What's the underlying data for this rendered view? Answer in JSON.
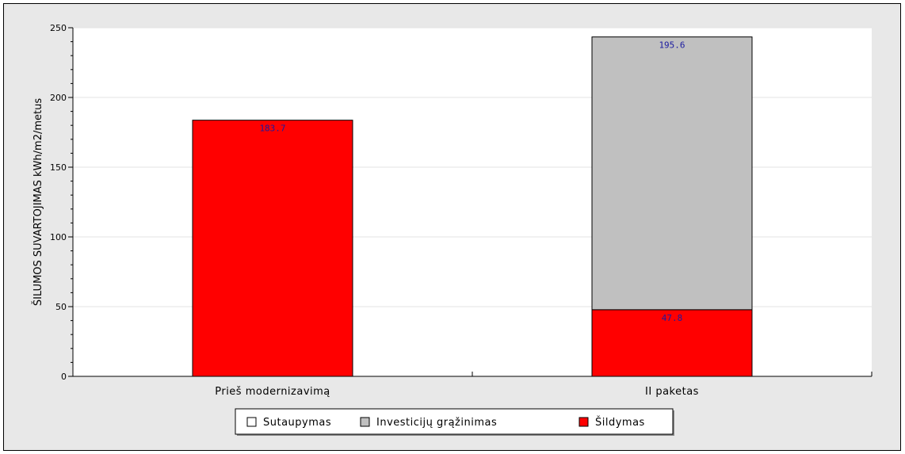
{
  "chart_data": {
    "type": "bar",
    "stacked": true,
    "categories": [
      "Prieš modernizavimą",
      "II paketas"
    ],
    "series": [
      {
        "name": "Sutaupymas",
        "color": "#ffffff",
        "values": [
          0,
          0
        ]
      },
      {
        "name": "Investicijų grąžinimas",
        "color": "#c0c0c0",
        "values": [
          0,
          195.6
        ]
      },
      {
        "name": "Šildymas",
        "color": "#ff0000",
        "values": [
          183.7,
          47.8
        ]
      }
    ],
    "data_labels": [
      {
        "category": 0,
        "series": "Šildymas",
        "text": "183.7"
      },
      {
        "category": 1,
        "series": "Investicijų grąžinimas",
        "text": "195.6"
      },
      {
        "category": 1,
        "series": "Šildymas",
        "text": "47.8"
      }
    ],
    "title": "",
    "xlabel": "",
    "ylabel": "ŠILUMOS SUVARTOJIMAS kWh/m2/metus",
    "ylim": [
      0,
      250
    ],
    "yticks": [
      0,
      50,
      100,
      150,
      200,
      250
    ],
    "ytick_labels": [
      "0",
      "50",
      "100",
      "150",
      "200",
      "250"
    ],
    "grid": true,
    "legend_position": "bottom-center",
    "data_label_color": "#1a1aa0"
  }
}
